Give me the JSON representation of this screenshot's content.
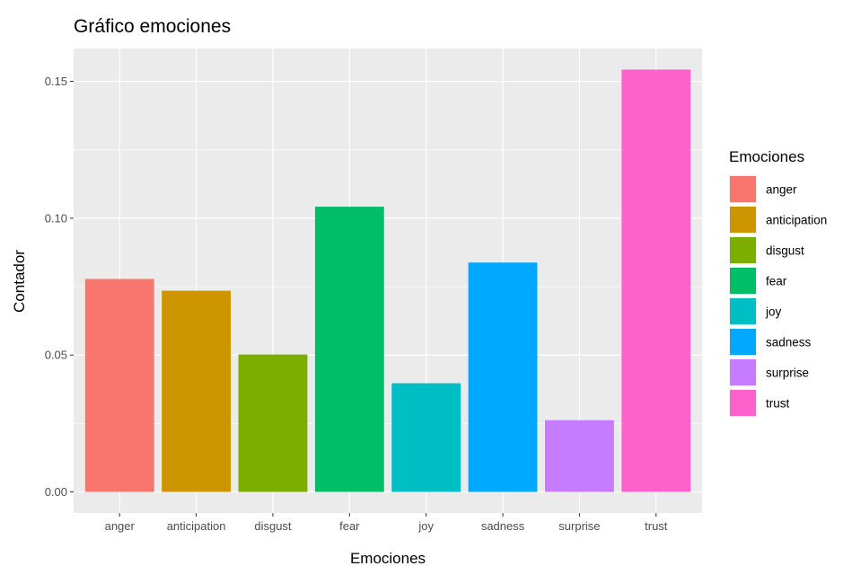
{
  "chart_data": {
    "type": "bar",
    "title": "Gráfico emociones",
    "xlabel": "Emociones",
    "ylabel": "Contador",
    "categories": [
      "anger",
      "anticipation",
      "disgust",
      "fear",
      "joy",
      "sadness",
      "surprise",
      "trust"
    ],
    "values": [
      0.0778,
      0.0735,
      0.0502,
      0.1042,
      0.0397,
      0.0838,
      0.0262,
      0.1543
    ],
    "colors": [
      "#F8766D",
      "#CD9600",
      "#7CAE00",
      "#00BE67",
      "#00BFC4",
      "#00A9FF",
      "#C77CFF",
      "#FF61CC"
    ],
    "ylim": [
      -0.0077,
      0.162
    ],
    "yticks": [
      0.0,
      0.05,
      0.1,
      0.15
    ],
    "ytick_labels": [
      "0.00",
      "0.05",
      "0.10",
      "0.15"
    ],
    "grid": true,
    "panel_background": "#EBEBEB",
    "grid_color": "#FFFFFF",
    "legend": {
      "title": "Emociones",
      "placement": "right",
      "entries": [
        "anger",
        "anticipation",
        "disgust",
        "fear",
        "joy",
        "sadness",
        "surprise",
        "trust"
      ]
    }
  }
}
